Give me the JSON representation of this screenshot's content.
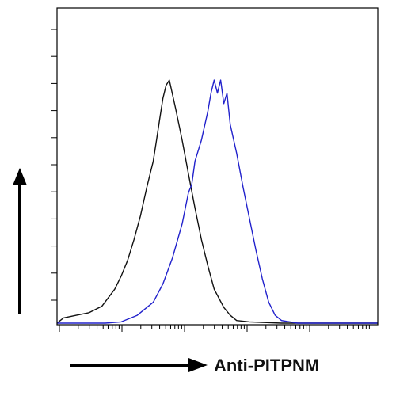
{
  "chart_data": {
    "type": "line",
    "title": "",
    "xlabel": "Anti-PITPNM",
    "ylabel": "",
    "xscale": "log",
    "xlim": [
      0,
      1
    ],
    "ylim": [
      0,
      1
    ],
    "grid": false,
    "legend": "none",
    "series": [
      {
        "color": "#111111",
        "x": [
          0.0,
          0.02,
          0.06,
          0.1,
          0.14,
          0.18,
          0.2,
          0.22,
          0.24,
          0.26,
          0.28,
          0.3,
          0.31,
          0.32,
          0.33,
          0.34,
          0.35,
          0.37,
          0.39,
          0.41,
          0.43,
          0.45,
          0.47,
          0.49,
          0.52,
          0.54,
          0.56,
          0.6,
          0.7,
          1.0
        ],
        "y": [
          0.0,
          0.02,
          0.03,
          0.04,
          0.065,
          0.13,
          0.18,
          0.24,
          0.32,
          0.41,
          0.52,
          0.62,
          0.7,
          0.78,
          0.86,
          0.91,
          0.93,
          0.82,
          0.7,
          0.57,
          0.44,
          0.32,
          0.22,
          0.13,
          0.06,
          0.03,
          0.01,
          0.005,
          0.0,
          0.0
        ]
      },
      {
        "color": "#2222cc",
        "x": [
          0.0,
          0.15,
          0.2,
          0.25,
          0.3,
          0.33,
          0.36,
          0.39,
          0.41,
          0.42,
          0.43,
          0.45,
          0.47,
          0.48,
          0.49,
          0.5,
          0.51,
          0.52,
          0.53,
          0.54,
          0.56,
          0.58,
          0.6,
          0.62,
          0.64,
          0.66,
          0.68,
          0.7,
          0.75,
          1.0
        ],
        "y": [
          0.0,
          0.0,
          0.005,
          0.03,
          0.08,
          0.15,
          0.25,
          0.38,
          0.5,
          0.53,
          0.62,
          0.7,
          0.81,
          0.88,
          0.93,
          0.88,
          0.93,
          0.84,
          0.88,
          0.76,
          0.65,
          0.52,
          0.4,
          0.28,
          0.17,
          0.08,
          0.03,
          0.01,
          0.0,
          0.0
        ]
      }
    ]
  }
}
